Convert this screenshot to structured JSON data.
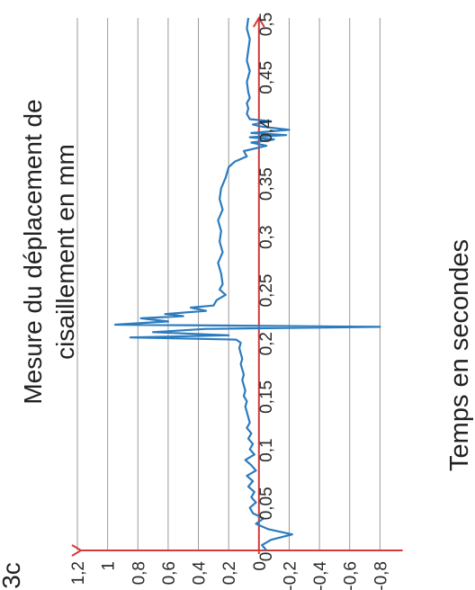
{
  "chart_data": {
    "type": "line",
    "title_lines": [
      "Mesure du déplacement de",
      "cisaillement en mm"
    ],
    "xlabel": "Temps en secondes",
    "ylabel": "",
    "corner_text": "3c",
    "x_ticks": [
      "0",
      "0,05",
      "0,1",
      "0,15",
      "0,2",
      "0,25",
      "0,3",
      "0,35",
      "0,4",
      "0,45",
      "0,5"
    ],
    "y_ticks": [
      "1,2",
      "1",
      "0,8",
      "0,6",
      "0,4",
      "0,2",
      "0",
      "-0,2",
      "-0,4",
      "-0,6",
      "-0,8"
    ],
    "xlim": [
      0,
      0.5
    ],
    "ylim": [
      -1.0,
      1.2
    ],
    "grid": true,
    "colors": {
      "series": "#2b7bbf",
      "axes": "#d23a3a",
      "grid": "#9a9a9a"
    },
    "series": [
      {
        "x": [
          0,
          0.005,
          0.01,
          0.015,
          0.02,
          0.025,
          0.03,
          0.035,
          0.04,
          0.045,
          0.05,
          0.055,
          0.06,
          0.065,
          0.07,
          0.075,
          0.08,
          0.085,
          0.09,
          0.095,
          0.1,
          0.105,
          0.11,
          0.115,
          0.12,
          0.125,
          0.13,
          0.135,
          0.14,
          0.145,
          0.15,
          0.155,
          0.16,
          0.165,
          0.17,
          0.175,
          0.18,
          0.185,
          0.19,
          0.195,
          0.198,
          0.2,
          0.202,
          0.205,
          0.208,
          0.21,
          0.212,
          0.215,
          0.218,
          0.22,
          0.222,
          0.225,
          0.228,
          0.23,
          0.235,
          0.24,
          0.245,
          0.25,
          0.26,
          0.27,
          0.28,
          0.29,
          0.3,
          0.31,
          0.32,
          0.33,
          0.34,
          0.35,
          0.36,
          0.365,
          0.37,
          0.375,
          0.38,
          0.383,
          0.386,
          0.388,
          0.39,
          0.392,
          0.395,
          0.398,
          0.4,
          0.403,
          0.405,
          0.41,
          0.415,
          0.42,
          0.425,
          0.43,
          0.44,
          0.45,
          0.46,
          0.47,
          0.48,
          0.49,
          0.5
        ],
        "values": [
          -0.05,
          -0.02,
          -0.08,
          -0.22,
          -0.06,
          0.02,
          -0.03,
          0.04,
          0.06,
          0.02,
          0.05,
          0.03,
          0.07,
          0.04,
          0.08,
          0.02,
          0.05,
          0.09,
          0.03,
          0.06,
          0.04,
          0.07,
          0.05,
          0.08,
          0.06,
          0.07,
          0.08,
          0.09,
          0.08,
          0.1,
          0.09,
          0.1,
          0.11,
          0.1,
          0.11,
          0.12,
          0.11,
          0.12,
          0.13,
          0.12,
          0.15,
          0.85,
          0.2,
          0.7,
          0.35,
          -0.8,
          0.95,
          0.6,
          0.78,
          0.5,
          0.62,
          0.35,
          0.45,
          0.3,
          0.28,
          0.22,
          0.26,
          0.24,
          0.25,
          0.27,
          0.24,
          0.26,
          0.25,
          0.27,
          0.24,
          0.26,
          0.25,
          0.22,
          0.2,
          0.16,
          0.08,
          0.1,
          -0.05,
          0.05,
          -0.1,
          0.06,
          -0.18,
          0.05,
          -0.2,
          -0.02,
          0.04,
          -0.08,
          0.06,
          0.08,
          0.07,
          0.08,
          0.06,
          0.07,
          0.08,
          0.06,
          0.08,
          0.07,
          0.06,
          0.08,
          0.07
        ]
      }
    ]
  }
}
